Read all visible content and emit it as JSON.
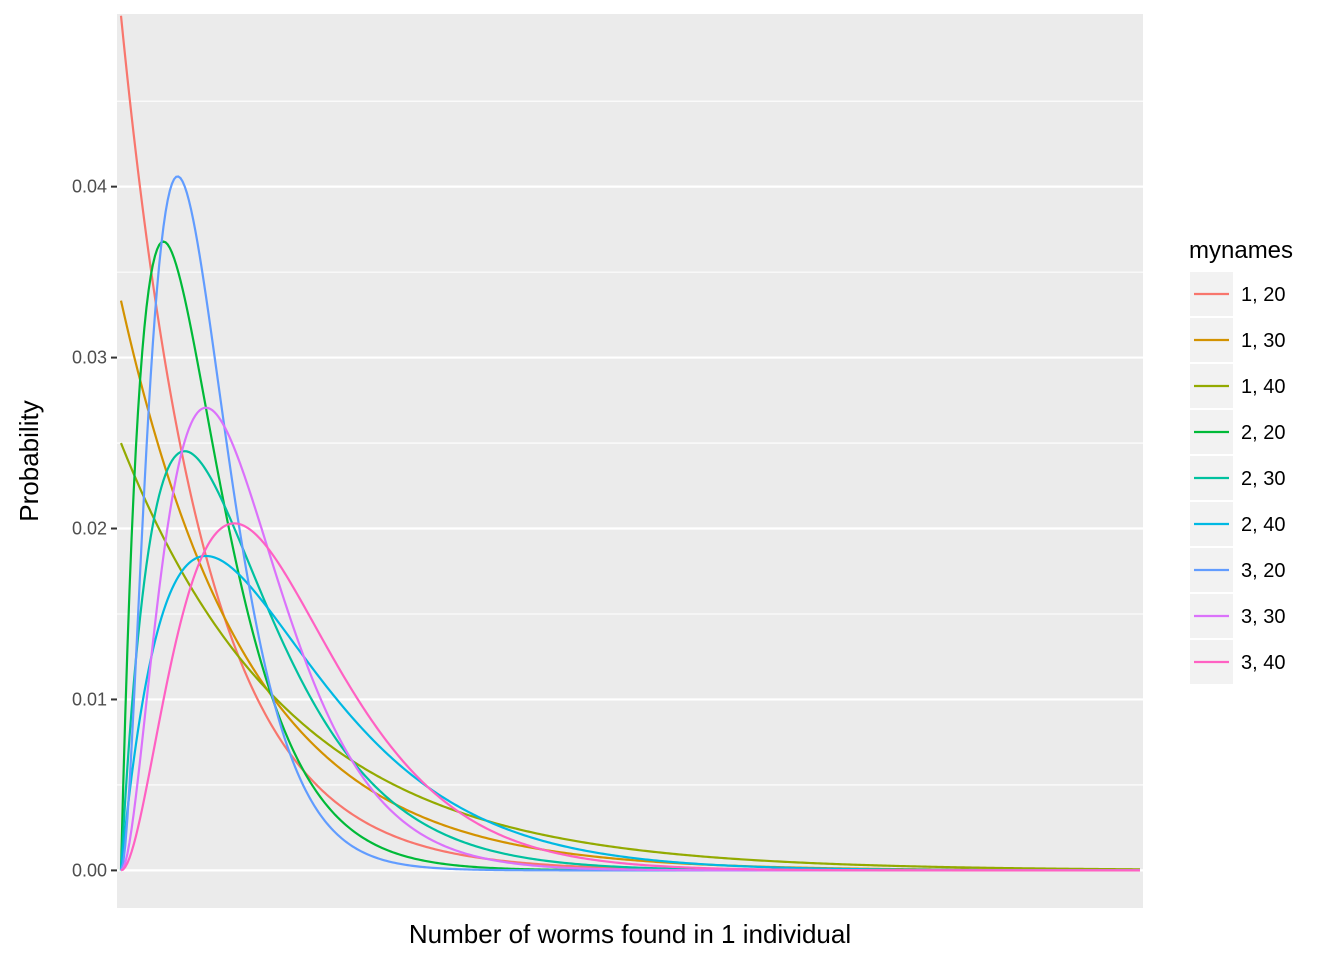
{
  "chart_data": {
    "type": "line",
    "title": "",
    "xlabel": "Number of worms found in 1 individual",
    "ylabel": "Probability",
    "x_range": [
      0,
      240
    ],
    "ylim": [
      -0.0022,
      0.0501
    ],
    "y_ticks": [
      0.0,
      0.01,
      0.02,
      0.03,
      0.04
    ],
    "y_tick_labels": [
      "0.00",
      "0.01",
      "0.02",
      "0.03",
      "0.04"
    ],
    "x_tick_labels": [],
    "grid": true,
    "legend": {
      "title": "mynames",
      "position": "right"
    },
    "series_model": "Gamma density with shape k and mean m: f(x) = x^(k-1) e^(-x k / m) / (Gamma(k) (m/k)^k)",
    "series": [
      {
        "name": "1, 20",
        "shape": 1,
        "mean": 20,
        "color": "#F8766D"
      },
      {
        "name": "1, 30",
        "shape": 1,
        "mean": 30,
        "color": "#D39200"
      },
      {
        "name": "1, 40",
        "shape": 1,
        "mean": 40,
        "color": "#93AA00"
      },
      {
        "name": "2, 20",
        "shape": 2,
        "mean": 20,
        "color": "#00BA38"
      },
      {
        "name": "2, 30",
        "shape": 2,
        "mean": 30,
        "color": "#00C19F"
      },
      {
        "name": "2, 40",
        "shape": 2,
        "mean": 40,
        "color": "#00B9E3"
      },
      {
        "name": "3, 20",
        "shape": 3,
        "mean": 20,
        "color": "#619CFF"
      },
      {
        "name": "3, 30",
        "shape": 3,
        "mean": 30,
        "color": "#DB72FB"
      },
      {
        "name": "3, 40",
        "shape": 3,
        "mean": 40,
        "color": "#FF61C3"
      }
    ]
  }
}
